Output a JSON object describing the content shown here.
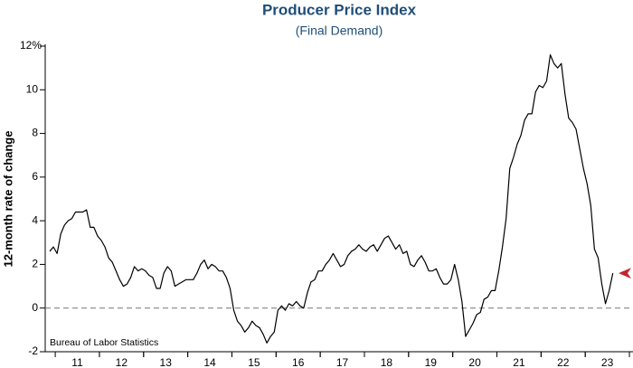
{
  "chart_data": {
    "type": "line",
    "title": "Producer Price Index",
    "subtitle": "(Final Demand)",
    "y_label": "12-month rate of change",
    "source": "Bureau of Labor Statistics",
    "categories": [
      null,
      null,
      null,
      null,
      null,
      null,
      null,
      null,
      "11",
      null,
      null,
      null,
      null,
      null,
      null,
      null,
      null,
      null,
      null,
      null,
      "12",
      null,
      null,
      null,
      null,
      null,
      null,
      null,
      null,
      null,
      null,
      null,
      "13",
      null,
      null,
      null,
      null,
      null,
      null,
      null,
      null,
      null,
      null,
      null,
      "14",
      null,
      null,
      null,
      null,
      null,
      null,
      null,
      null,
      null,
      null,
      null,
      "15",
      null,
      null,
      null,
      null,
      null,
      null,
      null,
      null,
      null,
      null,
      null,
      "16",
      null,
      null,
      null,
      null,
      null,
      null,
      null,
      null,
      null,
      null,
      null,
      "17",
      null,
      null,
      null,
      null,
      null,
      null,
      null,
      null,
      null,
      null,
      null,
      "18",
      null,
      null,
      null,
      null,
      null,
      null,
      null,
      null,
      null,
      null,
      null,
      "19",
      null,
      null,
      null,
      null,
      null,
      null,
      null,
      null,
      null,
      null,
      null,
      "20",
      null,
      null,
      null,
      null,
      null,
      null,
      null,
      null,
      null,
      null,
      null,
      "21",
      null,
      null,
      null,
      null,
      null,
      null,
      null,
      null,
      null,
      null,
      null,
      "22",
      null,
      null,
      null,
      null,
      null,
      null,
      null,
      null,
      null,
      null,
      null,
      "23",
      null
    ],
    "series": [
      {
        "color": "#000000",
        "values": [
          2.6,
          2.8,
          2.5,
          3.4,
          3.8,
          4.0,
          4.1,
          4.4,
          4.4,
          4.4,
          4.5,
          3.7,
          3.7,
          3.3,
          3.1,
          2.8,
          2.3,
          2.1,
          1.7,
          1.3,
          1.0,
          1.1,
          1.4,
          1.9,
          1.7,
          1.8,
          1.7,
          1.5,
          1.4,
          0.9,
          0.9,
          1.6,
          1.9,
          1.7,
          1.0,
          1.1,
          1.2,
          1.3,
          1.3,
          1.3,
          1.6,
          2.0,
          2.2,
          1.8,
          2.0,
          1.9,
          1.7,
          1.7,
          1.4,
          0.9,
          -0.1,
          -0.6,
          -0.8,
          -1.1,
          -0.9,
          -0.6,
          -0.8,
          -0.9,
          -1.2,
          -1.6,
          -1.3,
          -1.1,
          -0.1,
          0.1,
          -0.1,
          0.2,
          0.1,
          0.3,
          0.1,
          0.0,
          0.7,
          1.2,
          1.3,
          1.7,
          1.7,
          2.0,
          2.2,
          2.5,
          2.2,
          1.9,
          2.0,
          2.4,
          2.6,
          2.7,
          2.9,
          2.7,
          2.6,
          2.8,
          2.9,
          2.6,
          2.9,
          3.2,
          3.3,
          3.0,
          2.7,
          2.9,
          2.5,
          2.6,
          2.0,
          1.9,
          2.2,
          2.4,
          2.1,
          1.7,
          1.7,
          1.8,
          1.4,
          1.1,
          1.1,
          1.3,
          2.0,
          1.3,
          0.3,
          -1.3,
          -1.0,
          -0.7,
          -0.3,
          -0.2,
          0.4,
          0.5,
          0.8,
          0.8,
          1.7,
          2.8,
          4.1,
          6.4,
          6.9,
          7.5,
          7.9,
          8.6,
          8.9,
          8.9,
          9.9,
          10.2,
          10.1,
          10.4,
          11.6,
          11.2,
          11.0,
          11.2,
          9.8,
          8.7,
          8.5,
          8.2,
          7.3,
          6.4,
          5.7,
          4.7,
          2.7,
          2.3,
          1.1,
          0.2,
          0.8,
          1.6
        ]
      }
    ],
    "ylim": [
      -2,
      12
    ],
    "yticks": [
      -2,
      0,
      2,
      4,
      6,
      8,
      10,
      {
        "value": 12,
        "label": "12%"
      }
    ],
    "reference_line": 0,
    "marker_color": "#c0282d"
  }
}
